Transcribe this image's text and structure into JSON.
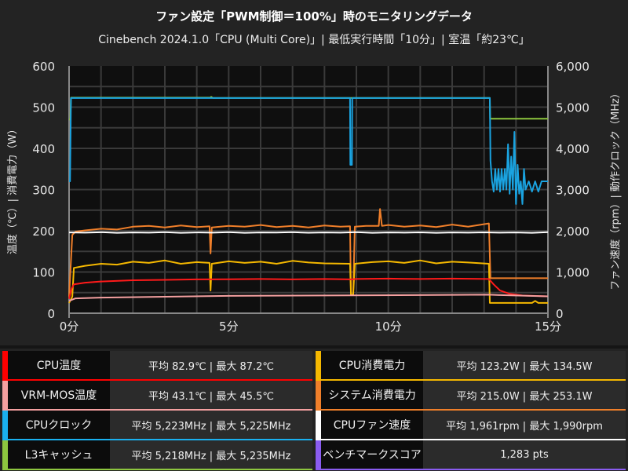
{
  "chart_data": {
    "type": "line",
    "title": "ファン設定「PWM制御＝100%」時のモニタリングデータ",
    "subtitle": "Cinebench 2024.1.0「CPU (Multi Core)」| 最低実行時間「10分」| 室温「約23℃」",
    "xlabel": "",
    "ylabel_left": "温度（℃）| 消費電力（W）",
    "ylabel_right": "ファン速度（rpm）| 動作クロック（MHz）",
    "xlim": [
      0,
      15
    ],
    "ylim_left": [
      0,
      600
    ],
    "ylim_right": [
      0,
      6000
    ],
    "x_ticks": [
      "0分",
      "5分",
      "10分",
      "15分"
    ],
    "y_ticks_left": [
      "0",
      "100",
      "200",
      "300",
      "400",
      "500",
      "600"
    ],
    "y_ticks_right": [
      "0",
      "1,000",
      "2,000",
      "3,000",
      "4,000",
      "5,000",
      "6,000"
    ],
    "grid": true,
    "series": [
      {
        "name": "L3キャッシュ",
        "axis": "right",
        "color": "#8dc63f",
        "points": [
          [
            0,
            4700
          ],
          [
            0.04,
            4700
          ],
          [
            0.06,
            5230
          ],
          [
            4.43,
            5230
          ],
          [
            4.45,
            5250
          ],
          [
            4.5,
            5225
          ],
          [
            13.18,
            5225
          ],
          [
            13.19,
            4720
          ],
          [
            15,
            4720
          ]
        ]
      },
      {
        "name": "CPUクロック",
        "axis": "right",
        "color": "#1aa3e0",
        "points": [
          [
            0,
            3200
          ],
          [
            0.03,
            3200
          ],
          [
            0.06,
            5220
          ],
          [
            8.8,
            5220
          ],
          [
            8.81,
            3600
          ],
          [
            8.86,
            3600
          ],
          [
            8.87,
            5220
          ],
          [
            13.18,
            5220
          ],
          [
            13.2,
            3700
          ],
          [
            13.25,
            3200
          ],
          [
            13.3,
            2950
          ],
          [
            13.35,
            3500
          ],
          [
            13.4,
            3000
          ],
          [
            13.45,
            3500
          ],
          [
            13.5,
            2950
          ],
          [
            13.55,
            3500
          ],
          [
            13.6,
            3000
          ],
          [
            13.65,
            3500
          ],
          [
            13.7,
            3000
          ],
          [
            13.75,
            4100
          ],
          [
            13.8,
            2900
          ],
          [
            13.85,
            3800
          ],
          [
            13.9,
            3000
          ],
          [
            13.95,
            4400
          ],
          [
            14.0,
            2650
          ],
          [
            14.05,
            3600
          ],
          [
            14.1,
            2900
          ],
          [
            14.15,
            3200
          ],
          [
            14.2,
            2650
          ],
          [
            14.25,
            3500
          ],
          [
            14.3,
            3000
          ],
          [
            14.4,
            3200
          ],
          [
            14.5,
            2950
          ],
          [
            14.6,
            3200
          ],
          [
            14.7,
            2950
          ],
          [
            14.8,
            3200
          ],
          [
            15,
            3200
          ]
        ]
      },
      {
        "name": "システム消費電力",
        "axis": "left",
        "color": "#f07f2a",
        "points": [
          [
            0,
            40
          ],
          [
            0.1,
            190
          ],
          [
            0.2,
            198
          ],
          [
            0.5,
            201
          ],
          [
            1,
            205
          ],
          [
            1.5,
            203
          ],
          [
            2,
            210
          ],
          [
            2.5,
            212
          ],
          [
            3,
            208
          ],
          [
            3.5,
            213
          ],
          [
            4,
            209
          ],
          [
            4.4,
            211
          ],
          [
            4.43,
            145
          ],
          [
            4.47,
            208
          ],
          [
            5,
            212
          ],
          [
            5.5,
            210
          ],
          [
            6,
            214
          ],
          [
            6.5,
            209
          ],
          [
            7,
            212
          ],
          [
            7.5,
            208
          ],
          [
            8,
            213
          ],
          [
            8.5,
            210
          ],
          [
            8.8,
            211
          ],
          [
            8.83,
            45
          ],
          [
            8.9,
            45
          ],
          [
            8.95,
            210
          ],
          [
            9.3,
            212
          ],
          [
            9.7,
            212
          ],
          [
            9.74,
            253
          ],
          [
            9.8,
            212
          ],
          [
            10,
            214
          ],
          [
            10.5,
            210
          ],
          [
            11,
            213
          ],
          [
            11.5,
            209
          ],
          [
            12,
            215
          ],
          [
            12.5,
            210
          ],
          [
            13.15,
            218
          ],
          [
            13.2,
            85
          ],
          [
            15,
            85
          ]
        ]
      },
      {
        "name": "CPUファン速度",
        "axis": "right",
        "color": "#ffffff",
        "points": [
          [
            0,
            1960
          ],
          [
            0.5,
            1955
          ],
          [
            1,
            1965
          ],
          [
            1.5,
            1950
          ],
          [
            2,
            1960
          ],
          [
            2.5,
            1955
          ],
          [
            3,
            1965
          ],
          [
            3.5,
            1950
          ],
          [
            4,
            1960
          ],
          [
            4.5,
            1955
          ],
          [
            5,
            1965
          ],
          [
            5.5,
            1950
          ],
          [
            6,
            1960
          ],
          [
            6.5,
            1958
          ],
          [
            7,
            1965
          ],
          [
            7.5,
            1952
          ],
          [
            8,
            1960
          ],
          [
            8.5,
            1955
          ],
          [
            9,
            1965
          ],
          [
            9.5,
            1950
          ],
          [
            10,
            1960
          ],
          [
            10.5,
            1955
          ],
          [
            11,
            1962
          ],
          [
            11.5,
            1950
          ],
          [
            12,
            1960
          ],
          [
            12.5,
            1955
          ],
          [
            13,
            1962
          ],
          [
            13.5,
            1955
          ],
          [
            14,
            1960
          ],
          [
            14.5,
            1950
          ],
          [
            15,
            1965
          ]
        ]
      },
      {
        "name": "CPU消費電力",
        "axis": "left",
        "color": "#f5b800",
        "points": [
          [
            0,
            25
          ],
          [
            0.1,
            40
          ],
          [
            0.15,
            110
          ],
          [
            0.5,
            115
          ],
          [
            1,
            120
          ],
          [
            1.5,
            118
          ],
          [
            2,
            125
          ],
          [
            2.5,
            122
          ],
          [
            3,
            128
          ],
          [
            3.5,
            120
          ],
          [
            4,
            124
          ],
          [
            4.4,
            122
          ],
          [
            4.43,
            55
          ],
          [
            4.47,
            120
          ],
          [
            5,
            126
          ],
          [
            5.5,
            122
          ],
          [
            6,
            125
          ],
          [
            6.5,
            120
          ],
          [
            7,
            127
          ],
          [
            7.5,
            123
          ],
          [
            8,
            121
          ],
          [
            8.8,
            120
          ],
          [
            8.83,
            45
          ],
          [
            8.9,
            45
          ],
          [
            8.95,
            120
          ],
          [
            9.5,
            124
          ],
          [
            10,
            126
          ],
          [
            10.5,
            122
          ],
          [
            11,
            128
          ],
          [
            11.5,
            121
          ],
          [
            12,
            125
          ],
          [
            12.5,
            123
          ],
          [
            13.15,
            120
          ],
          [
            13.18,
            25
          ],
          [
            14.5,
            25
          ],
          [
            14.6,
            30
          ],
          [
            14.7,
            25
          ],
          [
            15,
            25
          ]
        ]
      },
      {
        "name": "CPU温度",
        "axis": "left",
        "color": "#ff1a1a",
        "points": [
          [
            0,
            35
          ],
          [
            0.08,
            60
          ],
          [
            0.15,
            70
          ],
          [
            0.5,
            74
          ],
          [
            1,
            77
          ],
          [
            2,
            80
          ],
          [
            3,
            81
          ],
          [
            4,
            82
          ],
          [
            5,
            82.5
          ],
          [
            6,
            83
          ],
          [
            7,
            82
          ],
          [
            8,
            83
          ],
          [
            8.83,
            82
          ],
          [
            9,
            83
          ],
          [
            10,
            84
          ],
          [
            11,
            83
          ],
          [
            12,
            84
          ],
          [
            13.15,
            83
          ],
          [
            13.3,
            70
          ],
          [
            13.5,
            55
          ],
          [
            13.8,
            47
          ],
          [
            14.2,
            43
          ],
          [
            15,
            41
          ]
        ]
      },
      {
        "name": "VRM-MOS温度",
        "axis": "left",
        "color": "#f4a0a0",
        "points": [
          [
            0,
            30
          ],
          [
            0.2,
            36
          ],
          [
            1,
            38
          ],
          [
            3,
            40
          ],
          [
            5,
            42
          ],
          [
            8,
            43
          ],
          [
            11,
            44
          ],
          [
            13.15,
            45
          ],
          [
            13.5,
            44
          ],
          [
            15,
            41
          ]
        ]
      }
    ]
  },
  "stats": {
    "left": [
      {
        "label": "CPU温度",
        "value": "平均 82.9℃ | 最大 87.2℃",
        "color": "#ff0000"
      },
      {
        "label": "VRM-MOS温度",
        "value": "平均 43.1℃ | 最大 45.5℃",
        "color": "#f4a0a0"
      },
      {
        "label": "CPUクロック",
        "value": "平均 5,223MHz | 最大 5,225MHz",
        "color": "#1ab0ef"
      },
      {
        "label": "L3キャッシュ",
        "value": "平均 5,218MHz | 最大 5,235MHz",
        "color": "#8dc63f"
      }
    ],
    "right": [
      {
        "label": "CPU消費電力",
        "value": "平均 123.2W | 最大 134.5W",
        "color": "#f5b800"
      },
      {
        "label": "システム消費電力",
        "value": "平均 215.0W | 最大 253.1W",
        "color": "#f07f2a"
      },
      {
        "label": "CPUファン速度",
        "value": "平均 1,961rpm | 最大 1,990rpm",
        "color": "#ffffff"
      },
      {
        "label": "ベンチマークスコア",
        "value": "1,283 pts",
        "color": "#8a5cf0"
      }
    ]
  }
}
